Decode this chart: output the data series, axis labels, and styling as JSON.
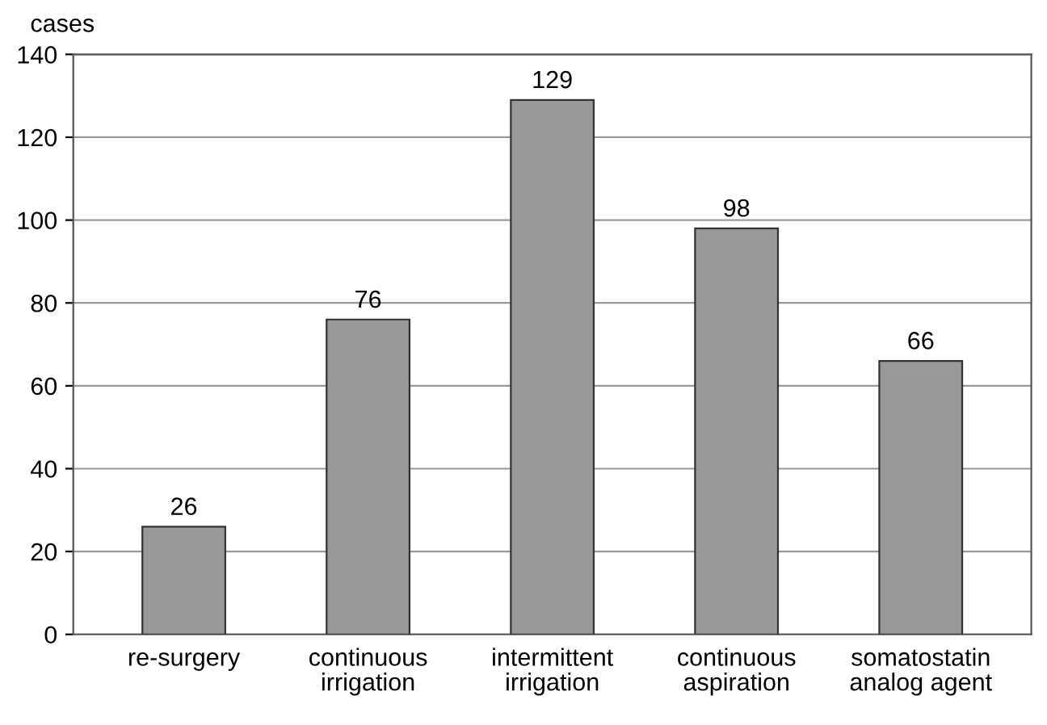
{
  "chart_data": {
    "type": "bar",
    "ylabel": "cases",
    "categories": [
      "re-surgery",
      "continuous\nirrigation",
      "intermittent\nirrigation",
      "continuous\naspiration",
      "somatostatin\nanalog agent"
    ],
    "values": [
      26,
      76,
      129,
      98,
      66
    ],
    "color": "#999999",
    "ylim": [
      0,
      140
    ],
    "yticks": [
      0,
      20,
      40,
      60,
      80,
      100,
      120,
      140
    ],
    "grid": "y",
    "data_labels": true
  }
}
